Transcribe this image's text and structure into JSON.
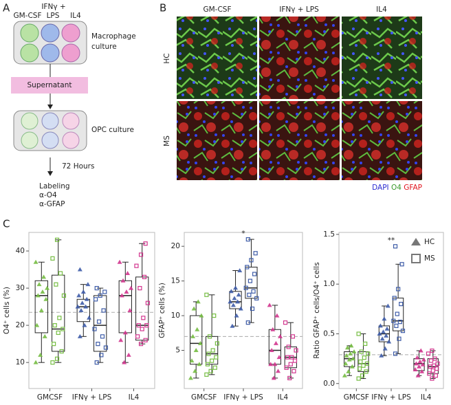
{
  "panel_labels": [
    "A",
    "B",
    "C"
  ],
  "panel_a": {
    "stimuli": [
      "GM-CSF",
      "IFNγ +",
      "LPS",
      "IL4"
    ],
    "macrophage": [
      "Macrophage",
      "culture"
    ],
    "supernatant": "Supernatant",
    "opc": "OPC culture",
    "time": "72 Hours",
    "labeling": [
      "Labeling",
      "α-O4",
      "α-GFAP"
    ]
  },
  "panel_b": {
    "columns": [
      "GM-CSF",
      "IFNγ + LPS",
      "IL4"
    ],
    "rows": [
      "HC",
      "MS"
    ],
    "stains": [
      {
        "text": "DAPI",
        "color": "#2a2ad0"
      },
      {
        "text": "O4",
        "color": "#3c9a2c"
      },
      {
        "text": "GFAP",
        "color": "#e0141e"
      }
    ]
  },
  "chart_data": [
    {
      "type": "box",
      "y_label": "O4⁺ cells (%)",
      "categories": [
        "GMCSF",
        "IFNγ + LPS",
        "IL4"
      ],
      "ylim": [
        3,
        45
      ],
      "yticks": [
        10,
        20,
        30,
        40
      ],
      "reference_line": 23.5,
      "category_colors": [
        "#76bd43",
        "#3e5ca8",
        "#d2358e"
      ],
      "series": [
        {
          "marker": "triangle",
          "boxes": [
            [
              10,
              18,
              28,
              32,
              37
            ],
            [
              17,
              21,
              25,
              27,
              31
            ],
            [
              10,
              18,
              28,
              32,
              37
            ]
          ],
          "points": [
            [
              10,
              12,
              17,
              20,
              24,
              27,
              28,
              29,
              30,
              31,
              33,
              37
            ],
            [
              17,
              20,
              22,
              24,
              25,
              25,
              26,
              27,
              28,
              29,
              31,
              35
            ],
            [
              10,
              12,
              16,
              18,
              24,
              28,
              29,
              30,
              32,
              34,
              37
            ]
          ]
        },
        {
          "marker": "square",
          "boxes": [
            [
              10,
              13,
              19,
              33.5,
              43
            ],
            [
              10,
              13,
              20,
              28,
              30
            ],
            [
              15,
              16,
              20,
              33,
              42
            ]
          ],
          "points": [
            [
              10,
              11,
              13,
              15,
              18,
              19,
              20,
              22,
              28,
              31,
              34,
              38,
              43
            ],
            [
              10,
              12,
              14,
              15,
              17,
              19,
              21,
              24,
              27,
              28,
              29,
              30
            ],
            [
              15,
              16,
              17,
              19,
              20,
              20,
              22,
              26,
              30,
              33,
              36,
              39,
              42
            ]
          ]
        }
      ]
    },
    {
      "type": "box",
      "y_label": "GFAP⁺ cells (%)",
      "categories": [
        "GMCSF",
        "IFNγ + LPS",
        "IL4"
      ],
      "ylim": [
        -0.5,
        22
      ],
      "yticks": [
        5,
        10,
        15,
        20
      ],
      "reference_line": 7,
      "category_colors": [
        "#76bd43",
        "#3e5ca8",
        "#d2358e"
      ],
      "significance": [
        null,
        "*",
        null
      ],
      "series": [
        {
          "marker": "triangle",
          "boxes": [
            [
              1,
              3,
              6,
              10,
              12
            ],
            [
              8.5,
              11,
              12,
              13.5,
              16.5
            ],
            [
              1,
              3,
              5,
              8,
              11.5
            ]
          ],
          "points": [
            [
              1,
              2,
              3,
              3.5,
              5,
              6,
              7,
              8,
              10,
              11,
              12
            ],
            [
              8.5,
              10,
              11,
              11.5,
              12,
              12,
              12.5,
              13,
              13.5,
              14,
              16.5
            ],
            [
              1,
              2,
              3,
              3,
              4,
              5,
              6,
              7,
              8,
              10,
              11.5
            ]
          ]
        },
        {
          "marker": "square",
          "boxes": [
            [
              1.5,
              3,
              4.5,
              7,
              13
            ],
            [
              9,
              12.5,
              14,
              17,
              21
            ],
            [
              1,
              2.5,
              4,
              5.5,
              9
            ]
          ],
          "points": [
            [
              1.5,
              2,
              2.5,
              3,
              3.5,
              4,
              4.5,
              5,
              6,
              7,
              10,
              13
            ],
            [
              9,
              11,
              12.5,
              13,
              13.5,
              14,
              15,
              16,
              17,
              18,
              19,
              21
            ],
            [
              1,
              2,
              2.5,
              3,
              3.5,
              4,
              4,
              5,
              5.5,
              7,
              9
            ]
          ]
        }
      ]
    },
    {
      "type": "box",
      "y_label": "Ratio GFAP⁺ cells/O4⁺ cells",
      "categories": [
        "GMCSF",
        "IFNγ + LPS",
        "IL4"
      ],
      "ylim": [
        -0.05,
        1.52
      ],
      "yticks": [
        {
          "value": 0,
          "label": "0.0"
        },
        {
          "value": 0.5,
          "label": "0.5"
        },
        {
          "value": 1,
          "label": "1.0"
        },
        {
          "value": 1.5,
          "label": "1.5"
        }
      ],
      "reference_line": 0.29,
      "category_colors": [
        "#76bd43",
        "#3e5ca8",
        "#d2358e"
      ],
      "significance": [
        null,
        "**",
        null
      ],
      "legend": "upper right",
      "series": [
        {
          "name": "HC",
          "marker": "triangle",
          "boxes": [
            [
              0.08,
              0.17,
              0.25,
              0.32,
              0.38
            ],
            [
              0.28,
              0.42,
              0.5,
              0.58,
              0.78
            ],
            [
              0.08,
              0.13,
              0.2,
              0.25,
              0.33
            ]
          ],
          "points": [
            [
              0.08,
              0.12,
              0.17,
              0.2,
              0.24,
              0.25,
              0.28,
              0.3,
              0.32,
              0.36,
              0.38
            ],
            [
              0.28,
              0.35,
              0.42,
              0.45,
              0.48,
              0.5,
              0.52,
              0.55,
              0.58,
              0.65,
              0.78
            ],
            [
              0.08,
              0.12,
              0.14,
              0.17,
              0.19,
              0.2,
              0.22,
              0.24,
              0.26,
              0.33
            ]
          ]
        },
        {
          "name": "MS",
          "marker": "square",
          "boxes": [
            [
              0.05,
              0.12,
              0.2,
              0.32,
              0.5
            ],
            [
              0.3,
              0.53,
              0.63,
              0.86,
              1.2
            ],
            [
              0.05,
              0.1,
              0.17,
              0.25,
              0.33
            ]
          ],
          "points": [
            [
              0.05,
              0.08,
              0.12,
              0.15,
              0.18,
              0.2,
              0.22,
              0.26,
              0.3,
              0.32,
              0.4,
              0.5
            ],
            [
              0.3,
              0.45,
              0.53,
              0.58,
              0.62,
              0.63,
              0.7,
              0.8,
              0.86,
              0.95,
              1.2,
              1.38
            ],
            [
              0.05,
              0.08,
              0.1,
              0.13,
              0.15,
              0.17,
              0.18,
              0.2,
              0.23,
              0.25,
              0.3,
              0.33
            ]
          ]
        }
      ]
    }
  ]
}
